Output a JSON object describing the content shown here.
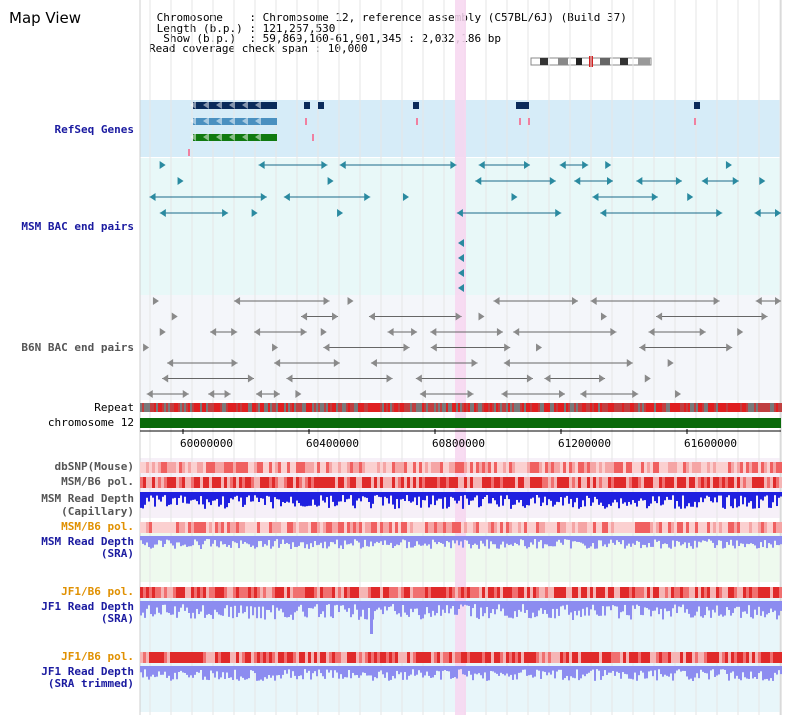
{
  "page": {
    "title": "Map View"
  },
  "header": {
    "lines": [
      " Chromosome    : Chromosome 12, reference assembly (C57BL/6J) (Build 37)",
      " Length (b.p.) : 121,257,530",
      "  Show (b.p.)  : 59,869,160-61,901,345 : 2,032,186 bp",
      "Read coverage check span : 10,000"
    ]
  },
  "tracks": {
    "refseq": "RefSeq Genes",
    "msm_bac": "MSM BAC end pairs",
    "b6n_bac": "B6N BAC end pairs",
    "repeat": "Repeat",
    "chromosome": "chromosome 12",
    "dbsnp": "dbSNP(Mouse)",
    "msm_b6_pol": "MSM/B6 pol.",
    "msm_depth_cap": "MSM Read Depth",
    "msm_depth_cap_sub": "(Capillary)",
    "msm_b6_pol_2": "MSM/B6 pol.",
    "msm_depth_sra": "MSM Read Depth",
    "msm_depth_sra_sub": "(SRA)",
    "jf1_b6_pol": "JF1/B6 pol.",
    "jf1_depth_sra": "JF1 Read Depth",
    "jf1_depth_sra_sub": "(SRA)",
    "jf1_b6_pol_2": "JF1/B6 pol.",
    "jf1_depth_trim": "JF1 Read Depth",
    "jf1_depth_trim_sub": "(SRA trimmed)"
  },
  "axis": {
    "ticks": [
      "60000000",
      "60400000",
      "60800000",
      "61200000",
      "61600000"
    ]
  },
  "colors": {
    "refseq_bg": "#d6ecf8",
    "bac_bg": "#e8f8f8",
    "b6n_bg": "#f4f6fa",
    "highlight": "#f7d6f0",
    "chromosome_bar": "#0a6a0a",
    "depth_blue": "#2020e0",
    "depth_light": "#8c8cf0",
    "pol_red": "#e83a3a",
    "pol_pink": "#f5a5a5"
  }
}
